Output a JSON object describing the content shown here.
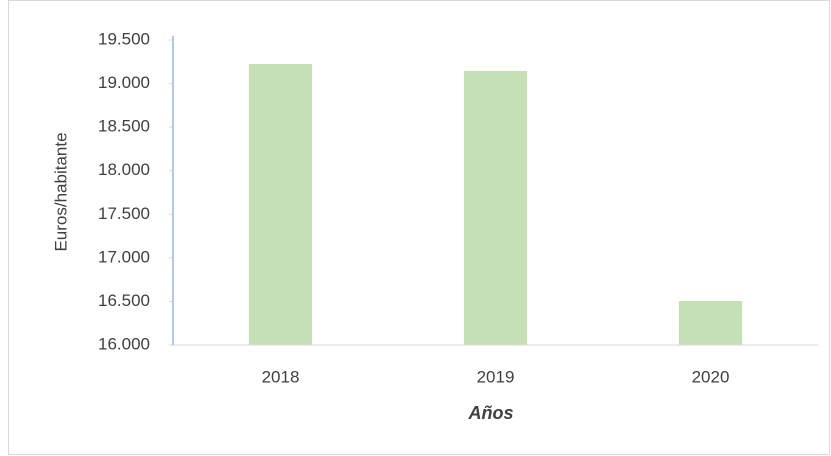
{
  "chart_data": {
    "type": "bar",
    "categories": [
      "2018",
      "2019",
      "2020"
    ],
    "values": [
      19225,
      19145,
      16505
    ],
    "color": "#c5e0b4",
    "ylim": [
      16000,
      19500
    ],
    "yticks": [
      {
        "value": 16000,
        "label": "16.000"
      },
      {
        "value": 16500,
        "label": "16.500"
      },
      {
        "value": 17000,
        "label": "17.000"
      },
      {
        "value": 17500,
        "label": "17.500"
      },
      {
        "value": 18000,
        "label": "18.000"
      },
      {
        "value": 18500,
        "label": "18.500"
      },
      {
        "value": 19000,
        "label": "19.000"
      },
      {
        "value": 19500,
        "label": "19.500"
      }
    ],
    "ylabel": "Euros/habitante",
    "xlabel": "Años",
    "grid": false
  }
}
